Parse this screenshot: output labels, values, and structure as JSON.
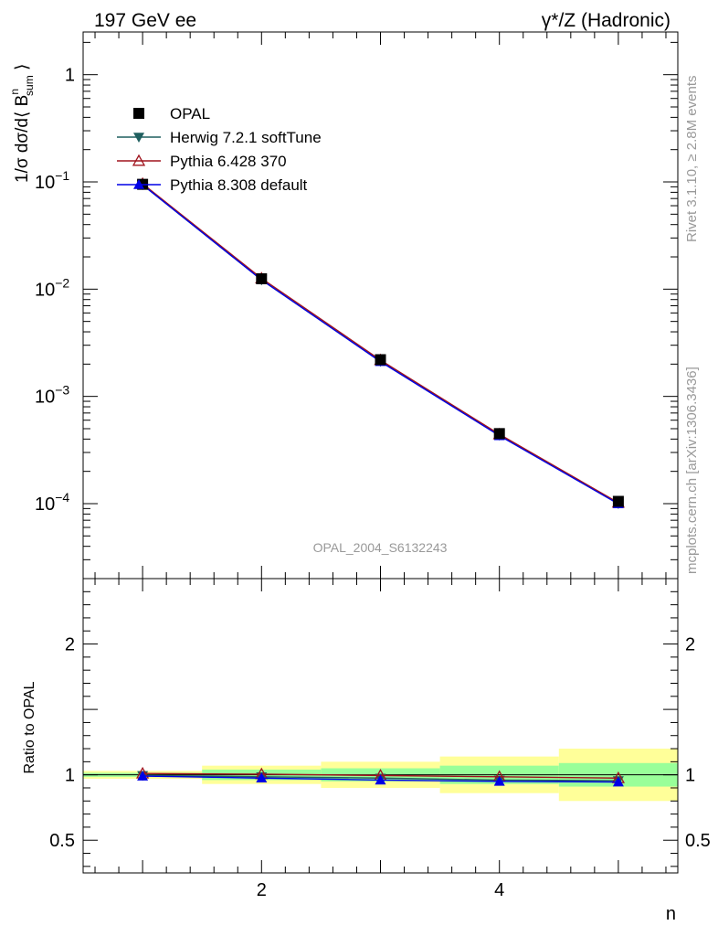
{
  "header": {
    "left_title": "197 GeV ee",
    "right_title": "γ*/Z (Hadronic)"
  },
  "side_text": {
    "rivet": "Rivet 3.1.10, ≥ 2.8M events",
    "mcplots": "mcplots.cern.ch [arXiv:1306.3436]"
  },
  "watermark": "OPAL_2004_S6132243",
  "top_ylabel": "1/σ dσ/d⟨ B",
  "top_ylabel_sup": "n",
  "top_ylabel_sub": "sum",
  "top_ylabel_close": " ⟩",
  "bottom_ylabel": "Ratio to OPAL",
  "xlabel": "n",
  "colors": {
    "data": "#000000",
    "herwig": "#1f5f5f",
    "pythia6": "#a0141e",
    "pythia8": "#0000e6",
    "band_inner": "#99ff99",
    "band_outer": "#ffff99"
  },
  "legend": [
    {
      "label": "OPAL",
      "marker": "square"
    },
    {
      "label": "Herwig 7.2.1 softTune",
      "marker": "triangle-down"
    },
    {
      "label": "Pythia 6.428 370",
      "marker": "triangle-open"
    },
    {
      "label": "Pythia 8.308 default",
      "marker": "triangle-up"
    }
  ],
  "chart_data": [
    {
      "type": "line",
      "yscale": "log",
      "xlim": [
        0.5,
        5.5
      ],
      "ylim": [
        2e-05,
        2.5
      ],
      "yticks": [
        {
          "value": 1,
          "base": "1",
          "exp": ""
        },
        {
          "value": 0.1,
          "base": "10",
          "exp": "−1"
        },
        {
          "value": 0.01,
          "base": "10",
          "exp": "−2"
        },
        {
          "value": 0.001,
          "base": "10",
          "exp": "−3"
        },
        {
          "value": 0.0001,
          "base": "10",
          "exp": "−4"
        }
      ],
      "x": [
        1,
        2,
        3,
        4,
        5
      ],
      "series": [
        {
          "name": "OPAL",
          "values": [
            0.095,
            0.0125,
            0.0022,
            0.00045,
            0.000105
          ]
        },
        {
          "name": "Herwig 7.2.1 softTune",
          "values": [
            0.094,
            0.0122,
            0.00212,
            0.000435,
            0.0001
          ]
        },
        {
          "name": "Pythia 6.428 370",
          "values": [
            0.096,
            0.0126,
            0.00218,
            0.000443,
            0.000102
          ]
        },
        {
          "name": "Pythia 8.308 default",
          "values": [
            0.094,
            0.0122,
            0.00211,
            0.00043,
            9.95e-05
          ]
        }
      ]
    },
    {
      "type": "line",
      "xlim": [
        0.5,
        5.5
      ],
      "ylim": [
        0.25,
        2.5
      ],
      "ylabel": "Ratio to OPAL",
      "xlabel": "n",
      "yticks": [
        {
          "value": 2,
          "label": "2"
        },
        {
          "value": 1,
          "label": "1"
        },
        {
          "value": 0.5,
          "label": "0.5"
        }
      ],
      "xticks": [
        {
          "value": 2,
          "label": "2"
        },
        {
          "value": 4,
          "label": "4"
        }
      ],
      "bins": [
        {
          "lo": 0.5,
          "hi": 1.5,
          "inner": [
            0.985,
            1.015
          ],
          "outer": [
            0.97,
            1.03
          ]
        },
        {
          "lo": 1.5,
          "hi": 2.5,
          "inner": [
            0.96,
            1.04
          ],
          "outer": [
            0.93,
            1.07
          ]
        },
        {
          "lo": 2.5,
          "hi": 3.5,
          "inner": [
            0.95,
            1.05
          ],
          "outer": [
            0.9,
            1.1
          ]
        },
        {
          "lo": 3.5,
          "hi": 4.5,
          "inner": [
            0.93,
            1.07
          ],
          "outer": [
            0.86,
            1.14
          ]
        },
        {
          "lo": 4.5,
          "hi": 5.5,
          "inner": [
            0.91,
            1.09
          ],
          "outer": [
            0.8,
            1.2
          ]
        }
      ],
      "x": [
        1,
        2,
        3,
        4,
        5
      ],
      "series": [
        {
          "name": "Herwig 7.2.1 softTune",
          "values": [
            0.995,
            0.985,
            0.975,
            0.96,
            0.955
          ]
        },
        {
          "name": "Pythia 6.428 370",
          "values": [
            1.01,
            1.005,
            0.995,
            0.985,
            0.975
          ]
        },
        {
          "name": "Pythia 8.308 default",
          "values": [
            0.99,
            0.975,
            0.96,
            0.95,
            0.945
          ]
        }
      ]
    }
  ]
}
